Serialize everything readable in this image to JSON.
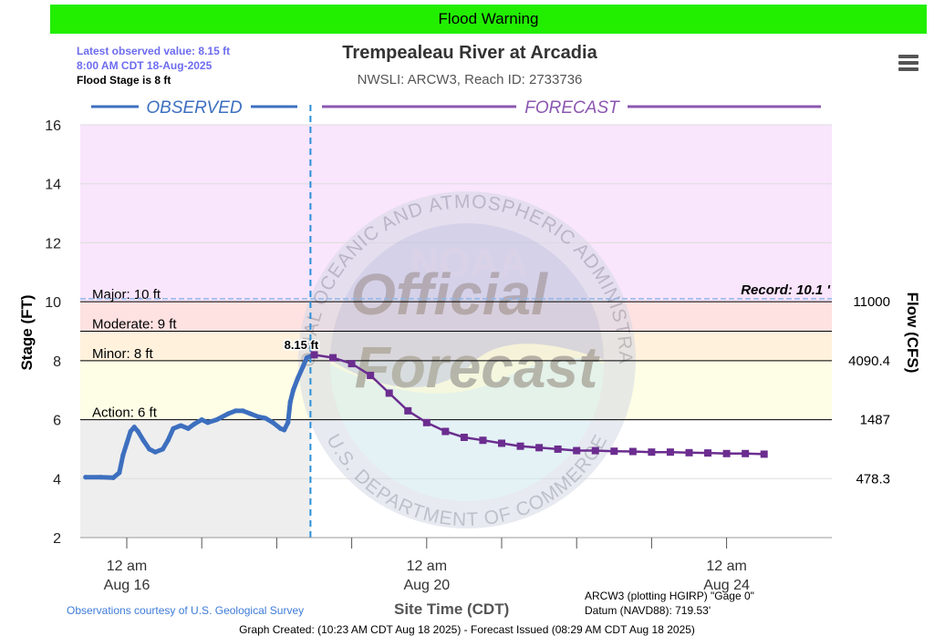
{
  "banner": {
    "text": "Flood Warning",
    "color": "#22ee00"
  },
  "latest": {
    "line1": "Latest observed value: 8.15 ft",
    "line2": "8:00 AM CDT 18-Aug-2025",
    "line3": "Flood Stage is 8 ft"
  },
  "header": {
    "title": "Trempealeau River at Arcadia",
    "subtitle": "NWSLI: ARCW3, Reach ID: 2733736"
  },
  "menu": {
    "icon": "hamburger-menu-icon"
  },
  "chart_data": {
    "type": "line",
    "title": "Trempealeau River at Arcadia",
    "subtitle": "NWSLI: ARCW3, Reach ID: 2733736",
    "xlabel": "Site Time (CDT)",
    "ylabel": "Stage (FT)",
    "y2label": "Flow (CFS)",
    "ylim": [
      2,
      16
    ],
    "yticks": [
      2,
      4,
      6,
      8,
      10,
      12,
      14,
      16
    ],
    "xlim_days": [
      -0.57,
      8.7
    ],
    "xticks": [
      {
        "day": 0,
        "label1": "12 am",
        "label2": "Aug 16"
      },
      {
        "day": 1,
        "label1": "",
        "label2": ""
      },
      {
        "day": 2,
        "label1": "",
        "label2": ""
      },
      {
        "day": 3,
        "label1": "",
        "label2": ""
      },
      {
        "day": 4,
        "label1": "12 am",
        "label2": "Aug 20"
      },
      {
        "day": 5,
        "label1": "",
        "label2": ""
      },
      {
        "day": 6,
        "label1": "",
        "label2": ""
      },
      {
        "day": 7,
        "label1": "",
        "label2": ""
      },
      {
        "day": 8,
        "label1": "12 am",
        "label2": "Aug 24"
      }
    ],
    "section_labels": {
      "observed": "OBSERVED",
      "forecast": "FORECAST"
    },
    "forecast_start_day": 2.45,
    "flood_bands": [
      {
        "name": "Action",
        "from": 6,
        "to": 8,
        "color": "#fefee6"
      },
      {
        "name": "Minor",
        "from": 8,
        "to": 9,
        "color": "#fff1dc"
      },
      {
        "name": "Moderate",
        "from": 9,
        "to": 10,
        "color": "#fee1e1"
      },
      {
        "name": "Major",
        "from": 10,
        "to": 16,
        "color": "#f9e5fc"
      }
    ],
    "thresholds": [
      {
        "label": "Action: 6 ft",
        "value": 6,
        "flow": "1487"
      },
      {
        "label": "Minor: 8 ft",
        "value": 8,
        "flow": "4090.4"
      },
      {
        "label": "Moderate: 9 ft",
        "value": 9,
        "flow": ""
      },
      {
        "label": "Major: 10 ft",
        "value": 10,
        "flow": "11000"
      }
    ],
    "extra_flow_labels": [
      {
        "value": 4,
        "flow": "478.3"
      }
    ],
    "record": {
      "label": "Record: 10.1 '",
      "value": 10.1
    },
    "latest_label": "8.15 ft",
    "watermark": {
      "ring_text": "NATIONAL OCEANIC AND ATMOSPHERIC ADMINISTRATION",
      "ring_text_bottom": "U.S. DEPARTMENT OF COMMERCE",
      "center": "NOAA",
      "line1": "Official",
      "line2": "Forecast"
    },
    "observed": [
      [
        -0.55,
        4.05
      ],
      [
        -0.35,
        4.05
      ],
      [
        -0.18,
        4.03
      ],
      [
        -0.1,
        4.2
      ],
      [
        -0.05,
        4.8
      ],
      [
        0.0,
        5.2
      ],
      [
        0.05,
        5.6
      ],
      [
        0.1,
        5.75
      ],
      [
        0.15,
        5.6
      ],
      [
        0.22,
        5.3
      ],
      [
        0.3,
        5.0
      ],
      [
        0.38,
        4.9
      ],
      [
        0.48,
        5.0
      ],
      [
        0.55,
        5.3
      ],
      [
        0.62,
        5.7
      ],
      [
        0.72,
        5.8
      ],
      [
        0.82,
        5.7
      ],
      [
        0.9,
        5.85
      ],
      [
        1.0,
        6.0
      ],
      [
        1.08,
        5.9
      ],
      [
        1.2,
        6.0
      ],
      [
        1.35,
        6.2
      ],
      [
        1.45,
        6.3
      ],
      [
        1.55,
        6.3
      ],
      [
        1.65,
        6.2
      ],
      [
        1.75,
        6.1
      ],
      [
        1.85,
        6.05
      ],
      [
        1.95,
        5.9
      ],
      [
        2.05,
        5.7
      ],
      [
        2.1,
        5.65
      ],
      [
        2.15,
        5.9
      ],
      [
        2.18,
        6.6
      ],
      [
        2.22,
        7.0
      ],
      [
        2.28,
        7.4
      ],
      [
        2.35,
        7.8
      ],
      [
        2.4,
        8.1
      ],
      [
        2.45,
        8.15
      ]
    ],
    "forecast": [
      [
        2.5,
        8.2
      ],
      [
        2.75,
        8.1
      ],
      [
        3.0,
        7.9
      ],
      [
        3.25,
        7.5
      ],
      [
        3.5,
        6.9
      ],
      [
        3.75,
        6.3
      ],
      [
        4.0,
        5.9
      ],
      [
        4.25,
        5.6
      ],
      [
        4.5,
        5.4
      ],
      [
        4.75,
        5.3
      ],
      [
        5.0,
        5.2
      ],
      [
        5.25,
        5.1
      ],
      [
        5.5,
        5.05
      ],
      [
        5.75,
        5.0
      ],
      [
        6.0,
        4.95
      ],
      [
        6.25,
        4.95
      ],
      [
        6.5,
        4.93
      ],
      [
        6.75,
        4.92
      ],
      [
        7.0,
        4.9
      ],
      [
        7.25,
        4.9
      ],
      [
        7.5,
        4.88
      ],
      [
        7.75,
        4.87
      ],
      [
        8.0,
        4.85
      ],
      [
        8.25,
        4.85
      ],
      [
        8.5,
        4.83
      ]
    ],
    "colors": {
      "observed": "#3d6fbf",
      "forecast": "#6b2d8f",
      "observed_bg": "#eeeeee"
    }
  },
  "footer": {
    "usgs": "Observations courtesy of U.S. Geological Survey",
    "xtitle": "Site Time (CDT)",
    "gage1": "ARCW3 (plotting HGIRP) \"Gage 0\"",
    "gage2": "Datum (NAVD88): 719.53'",
    "created": "Graph Created: (10:23 AM CDT Aug 18 2025) - Forecast Issued (08:29 AM CDT Aug 18 2025)"
  }
}
